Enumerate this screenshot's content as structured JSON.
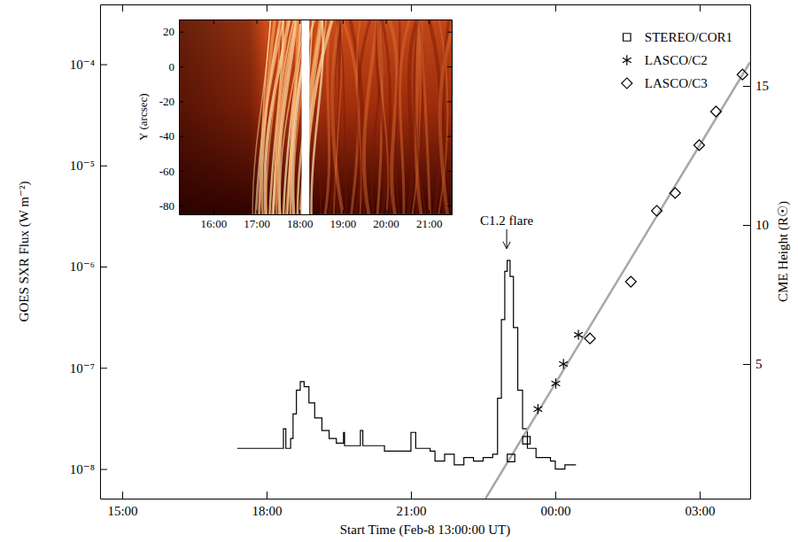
{
  "chart_data": [
    {
      "type": "line",
      "x_label": "Start Time (Feb-8 13:00:00 UT)",
      "y_label": "GOES SXR Flux (W m⁻²)",
      "y2_label": "CME Height (R☉)",
      "log": "y",
      "legend": "upper right",
      "xlim": [
        1.54,
        15.05
      ],
      "xticks": [
        {
          "value": 2,
          "label": "15:00"
        },
        {
          "value": 5,
          "label": "18:00"
        },
        {
          "value": 8,
          "label": "21:00"
        },
        {
          "value": 11,
          "label": "00:00"
        },
        {
          "value": 14,
          "label": "03:00"
        }
      ],
      "ylim": [
        5.1e-09,
        0.00039
      ],
      "yticks": [
        {
          "value": 1e-08,
          "label": "10⁻⁸"
        },
        {
          "value": 1e-07,
          "label": "10⁻⁷"
        },
        {
          "value": 1e-06,
          "label": "10⁻⁶"
        },
        {
          "value": 1e-05,
          "label": "10⁻⁵"
        },
        {
          "value": 0.0001,
          "label": "10⁻⁴"
        }
      ],
      "y2lim": [
        0.16,
        17.93
      ],
      "y2ticks": [
        5,
        10,
        15
      ],
      "series": [
        {
          "type": "line",
          "axis": "y",
          "color": "#000000",
          "line_style": "steps",
          "x": [
            4.39,
            5.3,
            5.35,
            5.4,
            5.5,
            5.55,
            5.62,
            5.7,
            5.78,
            5.88,
            6.0,
            6.15,
            6.3,
            6.45,
            6.6,
            6.62,
            6.9,
            6.95,
            7.0,
            7.4,
            7.45,
            7.9,
            8.0,
            8.1,
            8.4,
            8.5,
            8.7,
            8.9,
            9.1,
            9.3,
            9.5,
            9.7,
            9.8,
            9.88,
            9.95,
            10.0,
            10.06,
            10.13,
            10.22,
            10.32,
            10.42,
            10.6,
            10.9,
            11.0,
            11.2,
            11.43
          ],
          "values": [
            1.6e-08,
            1.6e-08,
            2.5e-08,
            1.6e-08,
            2e-08,
            3.5e-08,
            6e-08,
            7.3e-08,
            6.5e-08,
            4.5e-08,
            3.2e-08,
            2.4e-08,
            2e-08,
            1.8e-08,
            2.3e-08,
            1.7e-08,
            1.7e-08,
            2.4e-08,
            1.7e-08,
            1.7e-08,
            1.5e-08,
            1.5e-08,
            2.3e-08,
            1.6e-08,
            1.5e-08,
            1.2e-08,
            1.4e-08,
            1.1e-08,
            1.3e-08,
            1.2e-08,
            1.3e-08,
            1.4e-08,
            5e-08,
            3e-07,
            9e-07,
            1.15e-06,
            8e-07,
            2.5e-07,
            6e-08,
            2.5e-08,
            1.6e-08,
            1.3e-08,
            1.2e-08,
            1e-08,
            1.1e-08,
            1.1e-08
          ]
        },
        {
          "type": "line",
          "axis": "y2",
          "color": "#a8a8a8",
          "line_style": "solid",
          "x": [
            9.55,
            15.05
          ],
          "values": [
            0.16,
            15.86
          ]
        },
        {
          "name": "STEREO/COR1",
          "type": "scatter",
          "axis": "y2",
          "color": "#000000",
          "marker": "square",
          "x": [
            10.08,
            10.4
          ],
          "values": [
            1.62,
            2.26
          ]
        },
        {
          "name": "LASCO/C2",
          "type": "scatter",
          "axis": "y2",
          "color": "#000000",
          "marker": "asterisk",
          "x": [
            10.64,
            11.01,
            11.17,
            11.48
          ],
          "values": [
            3.38,
            4.3,
            5.0,
            6.05
          ]
        },
        {
          "name": "LASCO/C3",
          "type": "scatter",
          "axis": "y2",
          "color": "#000000",
          "marker": "diamond",
          "x": [
            11.72,
            12.57,
            13.11,
            13.49,
            13.99,
            14.34,
            14.89
          ],
          "values": [
            5.92,
            7.96,
            10.51,
            11.15,
            12.87,
            14.08,
            15.41
          ]
        }
      ],
      "annotations": [
        {
          "text": "C1.2 flare",
          "x": 9.99,
          "y": 1.5e-06
        }
      ]
    },
    {
      "type": "image",
      "y_label": "Y (arcsec)",
      "xlim": [
        2.2,
        8.53
      ],
      "xticks": [
        {
          "value": 3,
          "label": "16:00"
        },
        {
          "value": 4,
          "label": "17:00"
        },
        {
          "value": 5,
          "label": "18:00"
        },
        {
          "value": 6,
          "label": "19:00"
        },
        {
          "value": 7,
          "label": "20:00"
        },
        {
          "value": 8,
          "label": "21:00"
        }
      ],
      "ylim": [
        -85,
        27
      ],
      "yticks": [
        20,
        0,
        -20,
        -40,
        -60,
        -80
      ]
    }
  ]
}
